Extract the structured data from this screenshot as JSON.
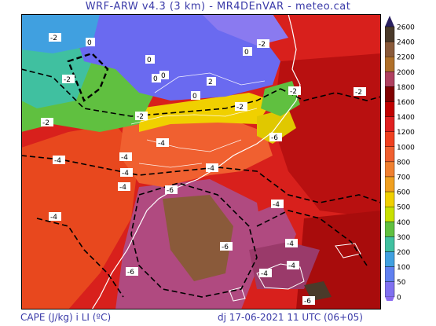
{
  "title": "WRF-ARW v4.3 (3 km) - MR4DEnVAR - meteo.cat",
  "footer": {
    "variable": "CAPE (J/kg) i LI (ºC)",
    "valid_time": "dj 17-06-2021 11 UTC (06+05)"
  },
  "colorbar": {
    "labels": [
      "2600",
      "2400",
      "2200",
      "2000",
      "1800",
      "1600",
      "1400",
      "1200",
      "1000",
      "800",
      "700",
      "600",
      "500",
      "400",
      "300",
      "200",
      "100",
      "50",
      "0"
    ],
    "colors": [
      "#4a3a2a",
      "#8a5a3a",
      "#b0702a",
      "#b04060",
      "#800000",
      "#c00000",
      "#e02020",
      "#f04020",
      "#f06030",
      "#f08030",
      "#f0a020",
      "#f0d000",
      "#c8e000",
      "#60c040",
      "#40c0a0",
      "#40a0e0",
      "#6080f0",
      "#8070f0"
    ]
  },
  "map_colors": {
    "sea_deep": "#d01818",
    "sea_mid": "#e83c1e",
    "brown": "#8a5a3a",
    "purple": "#b04a80",
    "green": "#60c040",
    "teal": "#40c0a0",
    "blue": "#6a6af0",
    "yellow": "#f0d000",
    "orange": "#f07030"
  },
  "li_labels": [
    "0",
    "0",
    "0",
    "0",
    "0",
    "2",
    "0",
    "-2",
    "-2",
    "-2",
    "-2",
    "-2",
    "-2",
    "-2",
    "-2",
    "-4",
    "-4",
    "-4",
    "-4",
    "-4",
    "-4",
    "-4",
    "-4",
    "-4",
    "-6",
    "-6",
    "-6",
    "-6",
    "-4",
    "-4",
    "-6"
  ]
}
